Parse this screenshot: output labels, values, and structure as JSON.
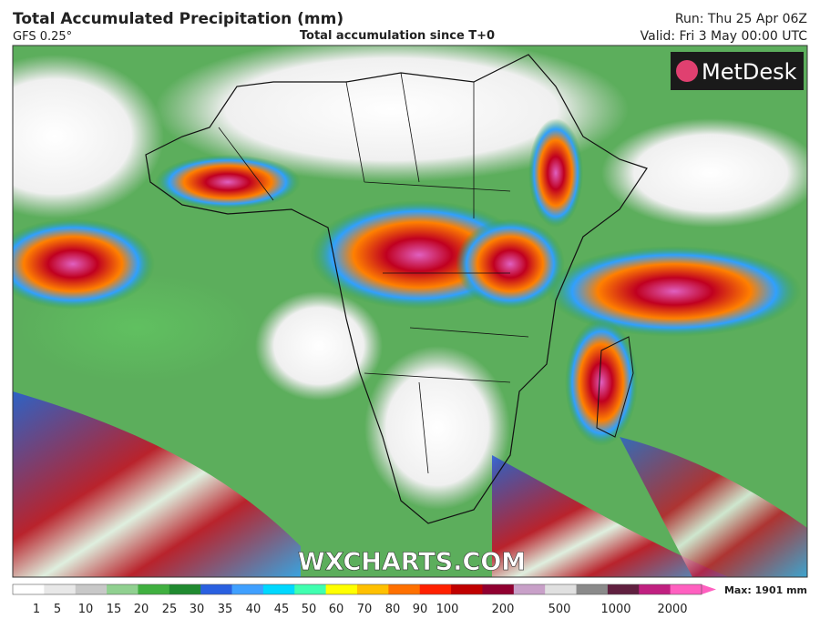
{
  "header": {
    "title": "Total Accumulated Precipitation (mm)",
    "model": "GFS 0.25°",
    "subtitle": "Total accumulation since T+0",
    "run": "Run: Thu 25 Apr 06Z",
    "valid": "Valid: Fri 3 May 00:00 UTC"
  },
  "logo": "MetDesk",
  "watermark": "WXCHARTS.COM",
  "colorbar": {
    "labels": [
      "1",
      "5",
      "10",
      "15",
      "20",
      "25",
      "30",
      "35",
      "40",
      "45",
      "50",
      "60",
      "70",
      "80",
      "90",
      "100",
      "200",
      "500",
      "1000",
      "2000"
    ],
    "colors": [
      "#ffffff",
      "#e8e8e8",
      "#c8c8c8",
      "#90d090",
      "#40b040",
      "#208a30",
      "#2a60e0",
      "#40a0ff",
      "#00d8ff",
      "#40ffb0",
      "#ffff00",
      "#ffc000",
      "#ff7000",
      "#ff2000",
      "#c00000",
      "#900030",
      "#c8a0c8",
      "#e0e0e0",
      "#8a8a8a",
      "#602040",
      "#c02080",
      "#ff60c0"
    ],
    "max": "Max: 1901 mm"
  }
}
